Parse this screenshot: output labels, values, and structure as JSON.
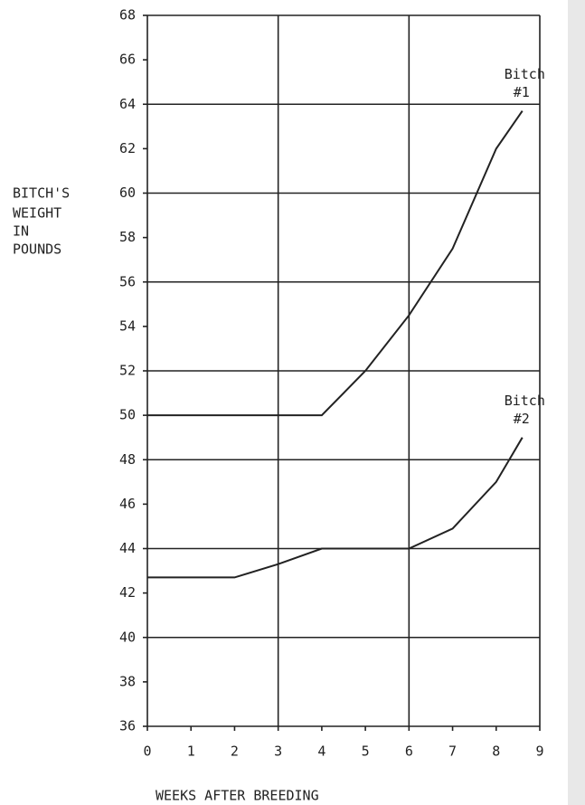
{
  "chart_data": {
    "type": "line",
    "ylabel": [
      "BITCH'S",
      "WEIGHT",
      "IN",
      "POUNDS"
    ],
    "xlabel": "WEEKS AFTER BREEDING",
    "x": [
      0,
      2,
      3,
      4,
      5,
      6,
      7,
      8,
      8.6
    ],
    "series": [
      {
        "label": [
          "Bitch",
          "#1"
        ],
        "color": "#222222",
        "values": [
          50,
          50,
          50,
          50,
          52,
          54.5,
          57.5,
          62,
          63.7
        ]
      },
      {
        "label": [
          "Bitch",
          "#2"
        ],
        "color": "#222222",
        "values": [
          42.7,
          42.7,
          43.3,
          44,
          44,
          44,
          44.9,
          47,
          49
        ]
      }
    ],
    "xlim": [
      0,
      9
    ],
    "ylim": [
      36,
      68
    ],
    "xticks": [
      0,
      1,
      2,
      3,
      4,
      5,
      6,
      7,
      8,
      9
    ],
    "yticks": [
      36,
      38,
      40,
      42,
      44,
      46,
      48,
      50,
      52,
      54,
      56,
      58,
      60,
      62,
      64,
      66,
      68
    ],
    "xgrid": [
      3,
      6,
      9
    ],
    "ygrid": [
      40,
      44,
      48,
      52,
      56,
      60,
      64,
      68
    ]
  }
}
